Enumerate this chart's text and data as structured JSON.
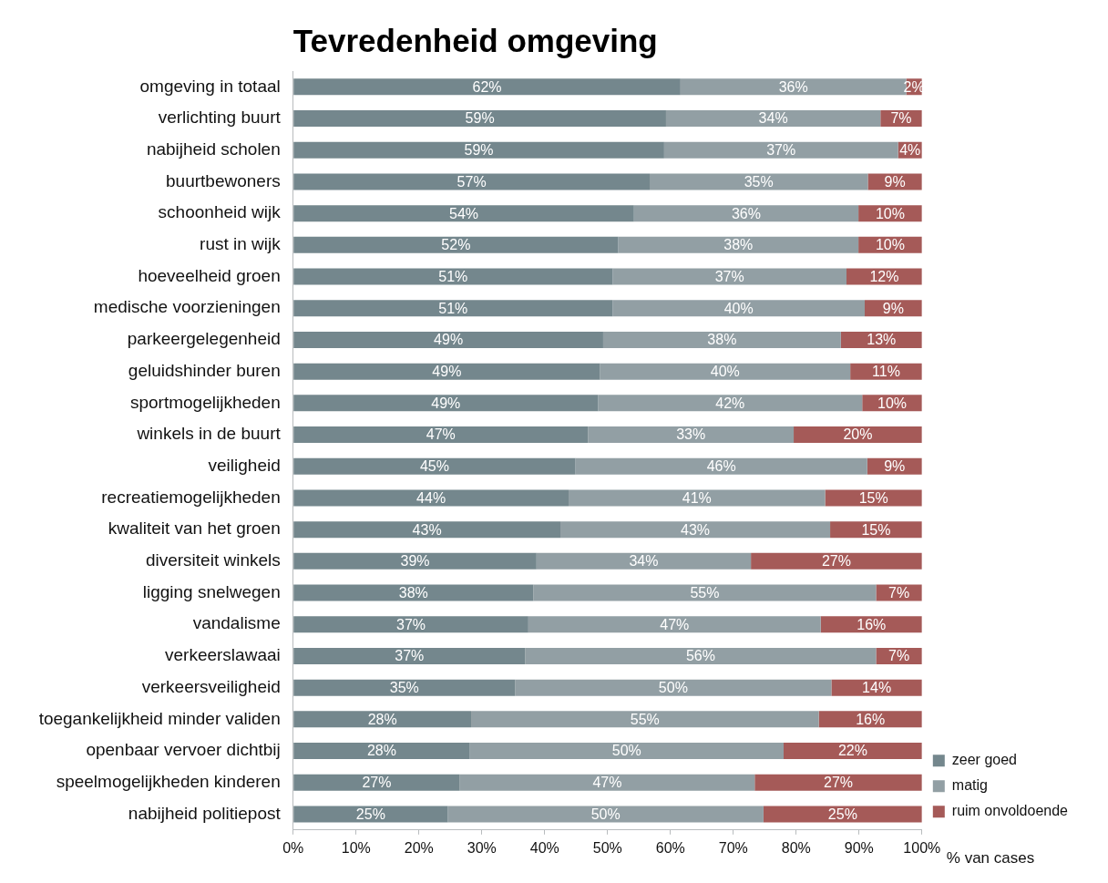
{
  "chart_data": {
    "type": "bar",
    "orientation": "horizontal",
    "stacked": true,
    "title": "Tevredenheid omgeving",
    "xlabel": "% van cases",
    "categories": [
      "omgeving in totaal",
      "verlichting buurt",
      "nabijheid scholen",
      "buurtbewoners",
      "schoonheid wijk",
      "rust in wijk",
      "hoeveelheid groen",
      "medische voorzieningen",
      "parkeergelegenheid",
      "geluidshinder buren",
      "sportmogelijkheden",
      "winkels in de buurt",
      "veiligheid",
      "recreatiemogelijkheden",
      "kwaliteit van het groen",
      "diversiteit winkels",
      "ligging snelwegen",
      "vandalisme",
      "verkeerslawaai",
      "verkeersveiligheid",
      "toegankelijkheid minder validen",
      "openbaar vervoer dichtbij",
      "speelmogelijkheden kinderen",
      "nabijheid politiepost"
    ],
    "series": [
      {
        "name": "zeer goed",
        "color": "#74878d",
        "values": [
          61.6,
          59.3,
          59.0,
          56.7,
          54.2,
          51.7,
          50.8,
          50.8,
          49.3,
          48.8,
          48.5,
          46.9,
          44.9,
          43.8,
          42.5,
          38.7,
          38.2,
          37.4,
          36.9,
          35.3,
          28.3,
          28.1,
          26.5,
          24.6
        ],
        "value_labels": [
          "62%",
          "59%",
          "59%",
          "57%",
          "54%",
          "52%",
          "51%",
          "51%",
          "49%",
          "49%",
          "49%",
          "47%",
          "45%",
          "44%",
          "43%",
          "39%",
          "38%",
          "37%",
          "37%",
          "35%",
          "28%",
          "28%",
          "27%",
          "25%"
        ]
      },
      {
        "name": "matig",
        "color": "#929fa4",
        "values": [
          35.9,
          34.1,
          37.2,
          34.7,
          35.7,
          38.2,
          37.2,
          40.1,
          37.8,
          39.8,
          42.0,
          32.7,
          46.4,
          40.8,
          42.9,
          34.1,
          54.5,
          46.5,
          55.8,
          50.3,
          55.3,
          49.9,
          46.9,
          50.2
        ],
        "value_labels": [
          "36%",
          "34%",
          "37%",
          "35%",
          "36%",
          "38%",
          "37%",
          "40%",
          "38%",
          "40%",
          "42%",
          "33%",
          "46%",
          "41%",
          "43%",
          "34%",
          "55%",
          "47%",
          "56%",
          "50%",
          "55%",
          "50%",
          "47%",
          "50%"
        ]
      },
      {
        "name": "ruim onvoldoende",
        "color": "#a55a58",
        "values": [
          2.5,
          6.6,
          3.8,
          8.6,
          10.1,
          10.1,
          12.0,
          9.1,
          12.9,
          11.4,
          9.5,
          20.4,
          8.7,
          15.4,
          14.6,
          27.2,
          7.3,
          16.1,
          7.3,
          14.4,
          16.4,
          22.0,
          26.6,
          25.2
        ],
        "value_labels": [
          "2%",
          "7%",
          "4%",
          "9%",
          "10%",
          "10%",
          "12%",
          "9%",
          "13%",
          "11%",
          "10%",
          "20%",
          "9%",
          "15%",
          "15%",
          "27%",
          "7%",
          "16%",
          "7%",
          "14%",
          "16%",
          "22%",
          "27%",
          "25%"
        ]
      }
    ],
    "xlim": [
      0,
      100
    ],
    "xticks": [
      {
        "value": 0,
        "label": "0%"
      },
      {
        "value": 10,
        "label": "10%"
      },
      {
        "value": 20,
        "label": "20%"
      },
      {
        "value": 30,
        "label": "30%"
      },
      {
        "value": 40,
        "label": "40%"
      },
      {
        "value": 50,
        "label": "50%"
      },
      {
        "value": 60,
        "label": "60%"
      },
      {
        "value": 70,
        "label": "70%"
      },
      {
        "value": 80,
        "label": "80%"
      },
      {
        "value": 90,
        "label": "90%"
      },
      {
        "value": 100,
        "label": "100%"
      }
    ],
    "legend": "bottom right"
  }
}
